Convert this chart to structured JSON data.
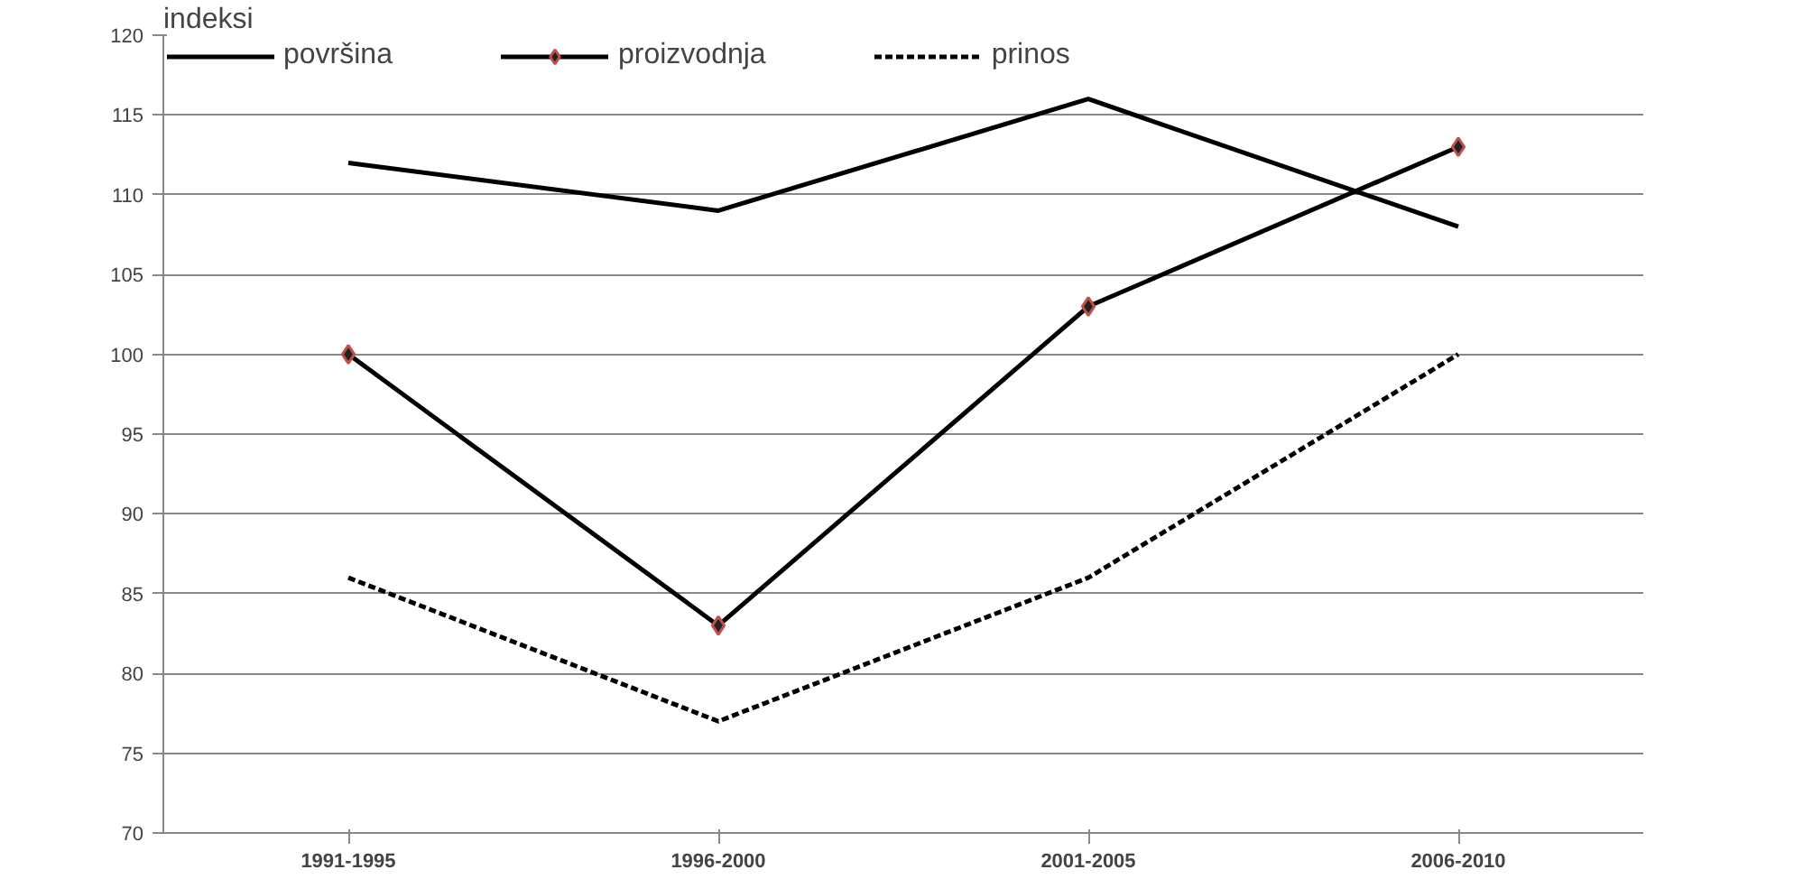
{
  "chart_data": {
    "type": "line",
    "ylabel": "indeksi",
    "categories": [
      "1991-1995",
      "1996-2000",
      "2001-2005",
      "2006-2010"
    ],
    "ylim": [
      70,
      120
    ],
    "yticks": [
      70,
      75,
      80,
      85,
      90,
      95,
      100,
      105,
      110,
      115,
      120
    ],
    "grid": "y",
    "legend": "top",
    "series": [
      {
        "name": "površina",
        "color": "#000000",
        "values": [
          112,
          109,
          116,
          108
        ],
        "marker": "none",
        "line_style": "solid"
      },
      {
        "name": "proizvodnja",
        "color": "#000000",
        "values": [
          100,
          83,
          103,
          113
        ],
        "marker": "diamond",
        "line_style": "solid"
      },
      {
        "name": "prinos",
        "color": "#000000",
        "values": [
          86,
          77,
          86,
          100
        ],
        "marker": "none",
        "line_style": "dashed"
      }
    ]
  }
}
